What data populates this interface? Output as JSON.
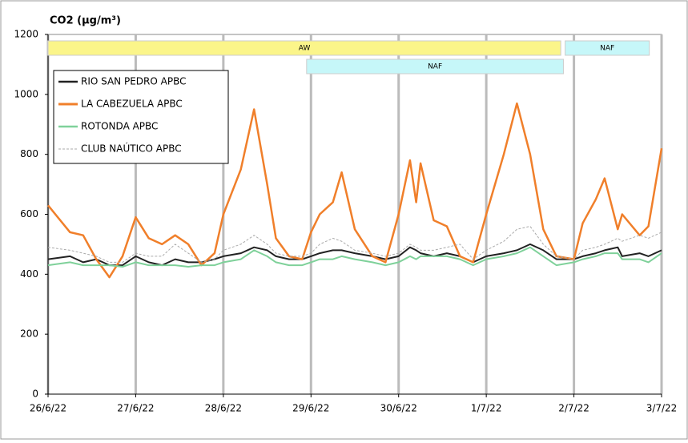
{
  "chart_data": {
    "type": "line",
    "title": "CO2 (µg/m³)",
    "x": [
      0,
      0.25,
      0.4,
      0.55,
      0.7,
      0.85,
      1.0,
      1.15,
      1.3,
      1.45,
      1.6,
      1.75,
      1.9,
      2.0,
      2.2,
      2.35,
      2.5,
      2.6,
      2.75,
      2.9,
      3.0,
      3.1,
      3.25,
      3.35,
      3.5,
      3.7,
      3.85,
      4.0,
      4.13,
      4.2,
      4.25,
      4.4,
      4.55,
      4.7,
      4.85,
      5.0,
      5.2,
      5.35,
      5.5,
      5.65,
      5.8,
      6.0,
      6.1,
      6.25,
      6.35,
      6.5,
      6.55,
      6.75,
      6.85,
      7.0
    ],
    "series": [
      {
        "name": "RIO SAN PEDRO APBC",
        "color": "#222222",
        "values": [
          450,
          460,
          440,
          450,
          430,
          430,
          460,
          440,
          430,
          450,
          440,
          440,
          450,
          460,
          470,
          490,
          480,
          460,
          450,
          450,
          460,
          470,
          480,
          480,
          470,
          460,
          450,
          460,
          490,
          480,
          470,
          460,
          470,
          460,
          440,
          460,
          470,
          480,
          500,
          480,
          450,
          450,
          460,
          470,
          480,
          490,
          460,
          470,
          460,
          480
        ]
      },
      {
        "name": "LA CABEZUELA  APBC",
        "color": "#f07f2a",
        "values": [
          630,
          540,
          530,
          450,
          390,
          460,
          590,
          520,
          500,
          530,
          500,
          430,
          470,
          600,
          750,
          950,
          700,
          520,
          460,
          450,
          540,
          600,
          640,
          740,
          550,
          460,
          440,
          600,
          780,
          640,
          770,
          580,
          560,
          460,
          440,
          600,
          800,
          970,
          800,
          550,
          460,
          450,
          570,
          650,
          720,
          550,
          600,
          530,
          560,
          820
        ]
      },
      {
        "name": "ROTONDA  APBC",
        "color": "#7fd19a",
        "values": [
          430,
          440,
          430,
          430,
          430,
          425,
          440,
          430,
          430,
          430,
          425,
          430,
          430,
          440,
          450,
          480,
          460,
          440,
          430,
          430,
          440,
          450,
          450,
          460,
          450,
          440,
          430,
          440,
          460,
          450,
          460,
          460,
          460,
          450,
          430,
          450,
          460,
          470,
          490,
          460,
          430,
          440,
          450,
          460,
          470,
          470,
          450,
          450,
          440,
          470
        ]
      },
      {
        "name": "CLUB NAÚTICO  APBC",
        "color": "#aaaaaa",
        "dashed": true,
        "values": [
          490,
          480,
          470,
          460,
          440,
          440,
          470,
          460,
          460,
          500,
          470,
          440,
          450,
          480,
          500,
          530,
          500,
          470,
          460,
          460,
          470,
          500,
          520,
          510,
          480,
          470,
          460,
          470,
          500,
          490,
          480,
          480,
          490,
          500,
          450,
          480,
          510,
          550,
          560,
          500,
          460,
          450,
          480,
          490,
          500,
          520,
          510,
          530,
          520,
          540
        ]
      }
    ],
    "xlim": [
      0,
      7
    ],
    "xticks": [
      {
        "value": 0,
        "label": "26/6/22"
      },
      {
        "value": 1,
        "label": "27/6/22"
      },
      {
        "value": 2,
        "label": "28/6/22"
      },
      {
        "value": 3,
        "label": "29/6/22"
      },
      {
        "value": 4,
        "label": "30/6/22"
      },
      {
        "value": 5,
        "label": "1/7/22"
      },
      {
        "value": 6,
        "label": "2/7/22"
      },
      {
        "value": 7,
        "label": "3/7/22"
      }
    ],
    "ylim": [
      0,
      1200
    ],
    "yticks": [
      0,
      200,
      400,
      600,
      800,
      1000,
      1200
    ],
    "xgrid": true,
    "legend": "upper left",
    "annotations": [
      {
        "text": "AW",
        "start": 0,
        "end": 5.85,
        "color": "#fbf58a"
      },
      {
        "text": "NAF",
        "start": 5.9,
        "end": 6.86,
        "color": "#c6f7f9"
      },
      {
        "text": "NAF",
        "start": 2.95,
        "end": 5.88,
        "color": "#c6f7f9"
      }
    ]
  }
}
